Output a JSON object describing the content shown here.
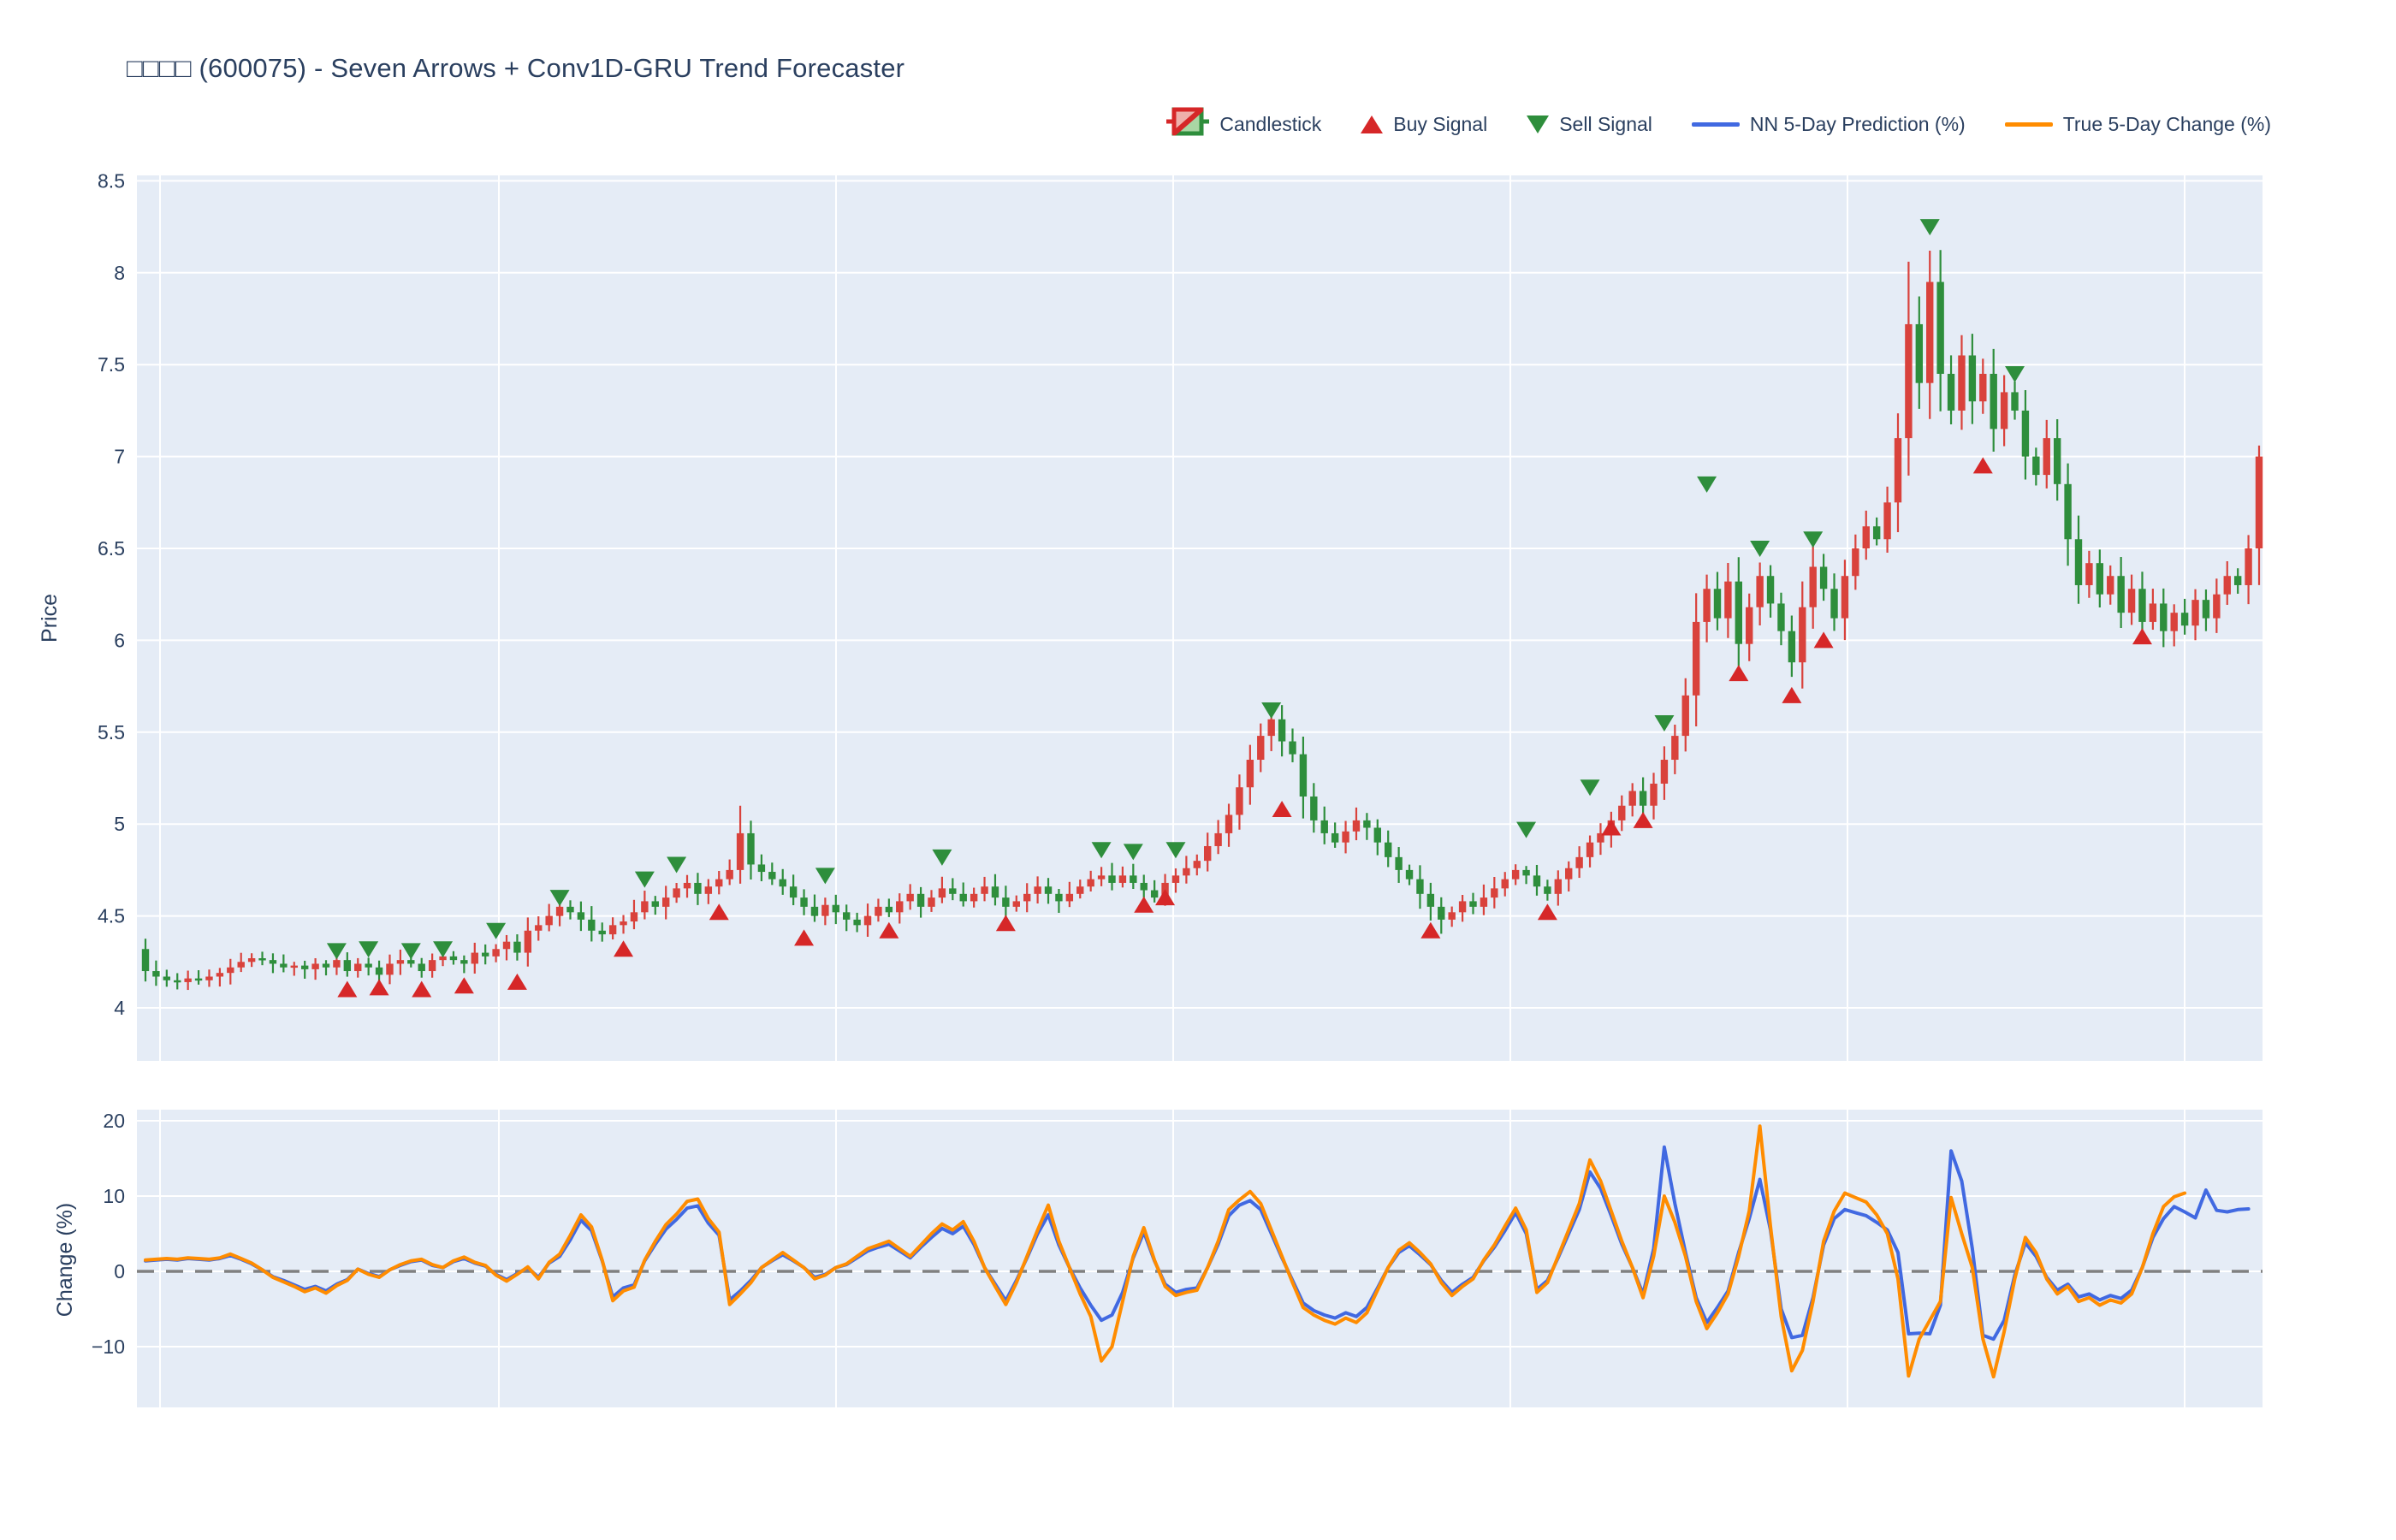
{
  "title": "□□□□ (600075) - Seven Arrows + Conv1D-GRU Trend Forecaster",
  "legend": {
    "candlestick": "Candlestick",
    "buy": "Buy Signal",
    "sell": "Sell Signal",
    "nn": "NN 5-Day Prediction (%)",
    "true_change": "True 5-Day Change (%)"
  },
  "axes": {
    "price": {
      "label": "Price",
      "ticks": [
        8.5,
        8,
        7.5,
        7,
        6.5,
        6,
        5.5,
        5,
        4.5,
        4
      ],
      "range": [
        3.71,
        8.53
      ]
    },
    "change": {
      "label": "Change (%)",
      "ticks": [
        20,
        10,
        0,
        -10
      ],
      "range": [
        -18.1,
        21.5
      ],
      "zero_line": 0
    }
  },
  "colors": {
    "page_bg": "#ffffff",
    "plot_bg": "#e5ecf6",
    "grid": "#ffffff",
    "text": "#2a3f5f",
    "candle_up_red": "#d9423c",
    "candle_down_green": "#2e8e3c",
    "buy_marker": "#d62728",
    "sell_marker": "#2e8e3c",
    "nn_blue": "#4169e1",
    "true_orange": "#ff8c00",
    "zero_dash_gray": "#808080"
  },
  "chart_data": [
    {
      "type": "candlestick",
      "name": "Candlestick",
      "first_open": 4.32,
      "close": [
        4.2,
        4.17,
        4.15,
        4.14,
        4.16,
        4.15,
        4.17,
        4.19,
        4.22,
        4.25,
        4.27,
        4.26,
        4.24,
        4.22,
        4.23,
        4.21,
        4.24,
        4.22,
        4.26,
        4.2,
        4.24,
        4.22,
        4.18,
        4.24,
        4.26,
        4.24,
        4.2,
        4.26,
        4.28,
        4.26,
        4.24,
        4.3,
        4.28,
        4.32,
        4.36,
        4.3,
        4.42,
        4.45,
        4.5,
        4.55,
        4.52,
        4.48,
        4.42,
        4.4,
        4.45,
        4.47,
        4.52,
        4.58,
        4.55,
        4.6,
        4.65,
        4.68,
        4.62,
        4.66,
        4.7,
        4.75,
        4.95,
        4.78,
        4.74,
        4.7,
        4.66,
        4.6,
        4.55,
        4.5,
        4.56,
        4.52,
        4.48,
        4.45,
        4.5,
        4.55,
        4.52,
        4.58,
        4.62,
        4.55,
        4.6,
        4.65,
        4.62,
        4.58,
        4.62,
        4.66,
        4.6,
        4.55,
        4.58,
        4.62,
        4.66,
        4.62,
        4.58,
        4.62,
        4.66,
        4.7,
        4.72,
        4.68,
        4.72,
        4.68,
        4.64,
        4.6,
        4.68,
        4.72,
        4.76,
        4.8,
        4.88,
        4.95,
        5.05,
        5.2,
        5.35,
        5.48,
        5.57,
        5.45,
        5.38,
        5.15,
        5.02,
        4.95,
        4.9,
        4.96,
        5.02,
        4.98,
        4.9,
        4.82,
        4.75,
        4.7,
        4.62,
        4.55,
        4.48,
        4.52,
        4.58,
        4.55,
        4.6,
        4.65,
        4.7,
        4.75,
        4.72,
        4.66,
        4.62,
        4.7,
        4.76,
        4.82,
        4.9,
        4.95,
        5.02,
        5.1,
        5.18,
        5.1,
        5.22,
        5.35,
        5.48,
        5.7,
        6.1,
        6.28,
        6.12,
        6.32,
        5.98,
        6.18,
        6.35,
        6.2,
        6.05,
        5.88,
        6.18,
        6.4,
        6.28,
        6.12,
        6.35,
        6.5,
        6.62,
        6.55,
        6.75,
        7.1,
        7.72,
        7.4,
        7.95,
        7.45,
        7.25,
        7.55,
        7.3,
        7.45,
        7.15,
        7.35,
        7.25,
        7.0,
        6.9,
        7.1,
        6.85,
        6.55,
        6.3,
        6.42,
        6.25,
        6.35,
        6.15,
        6.28,
        6.1,
        6.2,
        6.05,
        6.15,
        6.08,
        6.22,
        6.12,
        6.25,
        6.35,
        6.3,
        6.5,
        7.0
      ],
      "hi_overrides": [
        [
          56,
          5.1
        ],
        [
          166,
          8.06
        ],
        [
          168,
          8.12
        ],
        [
          199,
          7.06
        ]
      ],
      "buy_signals": [
        [
          19,
          4.1
        ],
        [
          22,
          4.11
        ],
        [
          26,
          4.1
        ],
        [
          30,
          4.12
        ],
        [
          35,
          4.14
        ],
        [
          45,
          4.32
        ],
        [
          54,
          4.52
        ],
        [
          62,
          4.38
        ],
        [
          70,
          4.42
        ],
        [
          81,
          4.46
        ],
        [
          94,
          4.56
        ],
        [
          96,
          4.6
        ],
        [
          107,
          5.08
        ],
        [
          121,
          4.42
        ],
        [
          132,
          4.52
        ],
        [
          138,
          4.98
        ],
        [
          141,
          5.02
        ],
        [
          150,
          5.82
        ],
        [
          155,
          5.7
        ],
        [
          158,
          6.0
        ],
        [
          173,
          6.95
        ],
        [
          188,
          6.02
        ]
      ],
      "sell_signals": [
        [
          18,
          4.31
        ],
        [
          21,
          4.32
        ],
        [
          25,
          4.31
        ],
        [
          28,
          4.32
        ],
        [
          33,
          4.42
        ],
        [
          39,
          4.6
        ],
        [
          47,
          4.7
        ],
        [
          50,
          4.78
        ],
        [
          64,
          4.72
        ],
        [
          75,
          4.82
        ],
        [
          90,
          4.86
        ],
        [
          93,
          4.85
        ],
        [
          97,
          4.86
        ],
        [
          106,
          5.62
        ],
        [
          130,
          4.97
        ],
        [
          136,
          5.2
        ],
        [
          143,
          5.55
        ],
        [
          147,
          6.85
        ],
        [
          152,
          6.5
        ],
        [
          157,
          6.55
        ],
        [
          168,
          8.25
        ],
        [
          176,
          7.45
        ]
      ]
    },
    {
      "type": "line",
      "name": "NN 5-Day Prediction (%)",
      "color_key": "nn_blue",
      "values": [
        1.4,
        1.5,
        1.6,
        1.5,
        1.7,
        1.6,
        1.5,
        1.7,
        2.1,
        1.6,
        1.0,
        0.2,
        -0.7,
        -1.2,
        -1.8,
        -2.4,
        -2.0,
        -2.6,
        -1.7,
        -1.1,
        0.3,
        -0.3,
        -0.7,
        0.2,
        0.8,
        1.3,
        1.5,
        0.8,
        0.5,
        1.3,
        1.7,
        1.1,
        0.7,
        -0.4,
        -1.1,
        -0.3,
        0.5,
        -0.8,
        1.1,
        2.0,
        4.2,
        6.8,
        5.4,
        1.4,
        -3.4,
        -2.2,
        -1.8,
        1.4,
        3.6,
        5.6,
        6.9,
        8.4,
        8.7,
        6.4,
        4.8,
        -3.8,
        -2.6,
        -1.2,
        0.5,
        1.4,
        2.2,
        1.4,
        0.5,
        -0.8,
        -0.4,
        0.5,
        0.9,
        1.8,
        2.7,
        3.2,
        3.6,
        2.7,
        1.8,
        3.2,
        4.5,
        5.7,
        5.0,
        6.0,
        3.6,
        0.5,
        -1.7,
        -3.9,
        -1.2,
        1.8,
        5.0,
        7.5,
        3.5,
        0.5,
        -2.2,
        -4.5,
        -6.5,
        -5.8,
        -2.8,
        1.8,
        5.2,
        1.4,
        -1.7,
        -2.8,
        -2.4,
        -2.2,
        0.5,
        3.6,
        7.4,
        8.8,
        9.4,
        8.2,
        5.0,
        1.8,
        -1.2,
        -4.2,
        -5.2,
        -5.8,
        -6.2,
        -5.5,
        -6.0,
        -4.8,
        -2.2,
        0.5,
        2.5,
        3.4,
        2.2,
        0.9,
        -1.2,
        -2.8,
        -1.7,
        -0.8,
        1.4,
        3.2,
        5.4,
        7.8,
        5.0,
        -2.4,
        -1.2,
        1.8,
        5.0,
        8.2,
        13.2,
        11.0,
        7.4,
        3.6,
        0.5,
        -3.0,
        3.0,
        16.5,
        9.0,
        2.5,
        -3.5,
        -6.8,
        -4.8,
        -2.6,
        2.5,
        7.0,
        12.2,
        5.5,
        -5.0,
        -8.8,
        -8.5,
        -3.5,
        3.5,
        7.0,
        8.2,
        7.8,
        7.4,
        6.5,
        5.5,
        2.5,
        -8.3,
        -8.2,
        -8.3,
        -4.5,
        16.0,
        12.0,
        3.0,
        -8.5,
        -9.0,
        -6.5,
        -0.5,
        3.8,
        2.0,
        -0.8,
        -2.5,
        -1.7,
        -3.4,
        -3.0,
        -3.8,
        -3.2,
        -3.6,
        -2.5,
        0.5,
        4.5,
        7.0,
        8.6,
        7.9,
        7.1,
        10.8,
        8.1,
        7.9,
        8.2,
        8.3,
        null
      ]
    },
    {
      "type": "line",
      "name": "True 5-Day Change (%)",
      "color_key": "true_orange",
      "values": [
        1.5,
        1.6,
        1.7,
        1.6,
        1.8,
        1.7,
        1.6,
        1.8,
        2.3,
        1.7,
        1.1,
        0.2,
        -0.8,
        -1.4,
        -2.0,
        -2.7,
        -2.2,
        -2.9,
        -1.9,
        -1.2,
        0.3,
        -0.4,
        -0.8,
        0.2,
        0.9,
        1.4,
        1.6,
        0.9,
        0.5,
        1.4,
        1.9,
        1.2,
        0.8,
        -0.5,
        -1.3,
        -0.4,
        0.6,
        -1.0,
        1.2,
        2.3,
        4.8,
        7.5,
        5.9,
        1.5,
        -3.9,
        -2.6,
        -2.1,
        1.5,
        4.0,
        6.2,
        7.6,
        9.3,
        9.6,
        7.0,
        5.2,
        -4.4,
        -3.0,
        -1.5,
        0.5,
        1.5,
        2.5,
        1.5,
        0.5,
        -1.0,
        -0.5,
        0.5,
        1.0,
        2.0,
        3.0,
        3.5,
        4.0,
        3.0,
        2.0,
        3.5,
        5.0,
        6.3,
        5.5,
        6.6,
        4.0,
        0.5,
        -2.0,
        -4.4,
        -1.5,
        2.0,
        5.5,
        8.8,
        4.0,
        0.5,
        -3.0,
        -6.0,
        -11.9,
        -10.0,
        -4.0,
        2.0,
        5.8,
        1.5,
        -2.0,
        -3.2,
        -2.8,
        -2.5,
        0.5,
        4.0,
        8.2,
        9.5,
        10.6,
        9.0,
        5.5,
        2.0,
        -1.5,
        -4.8,
        -5.8,
        -6.5,
        -7.0,
        -6.2,
        -6.8,
        -5.5,
        -2.5,
        0.5,
        2.8,
        3.8,
        2.5,
        1.0,
        -1.5,
        -3.2,
        -2.0,
        -1.0,
        1.5,
        3.5,
        6.0,
        8.4,
        5.5,
        -2.8,
        -1.5,
        2.0,
        5.5,
        9.0,
        14.8,
        12.0,
        8.0,
        4.0,
        0.5,
        -3.5,
        2.0,
        10.0,
        6.5,
        2.0,
        -4.0,
        -7.6,
        -5.5,
        -3.0,
        2.0,
        8.0,
        19.3,
        6.0,
        -6.0,
        -13.2,
        -10.5,
        -4.0,
        4.0,
        8.0,
        10.4,
        9.8,
        9.2,
        7.5,
        5.0,
        -1.0,
        -13.9,
        -9.0,
        -6.5,
        -4.0,
        9.8,
        5.0,
        0.5,
        -9.0,
        -14.0,
        -8.0,
        -1.0,
        4.5,
        2.5,
        -1.0,
        -3.0,
        -2.0,
        -4.0,
        -3.5,
        -4.5,
        -3.8,
        -4.2,
        -3.0,
        0.5,
        5.0,
        8.6,
        9.9,
        10.4,
        null,
        null,
        null,
        null,
        null,
        null,
        null
      ]
    }
  ]
}
